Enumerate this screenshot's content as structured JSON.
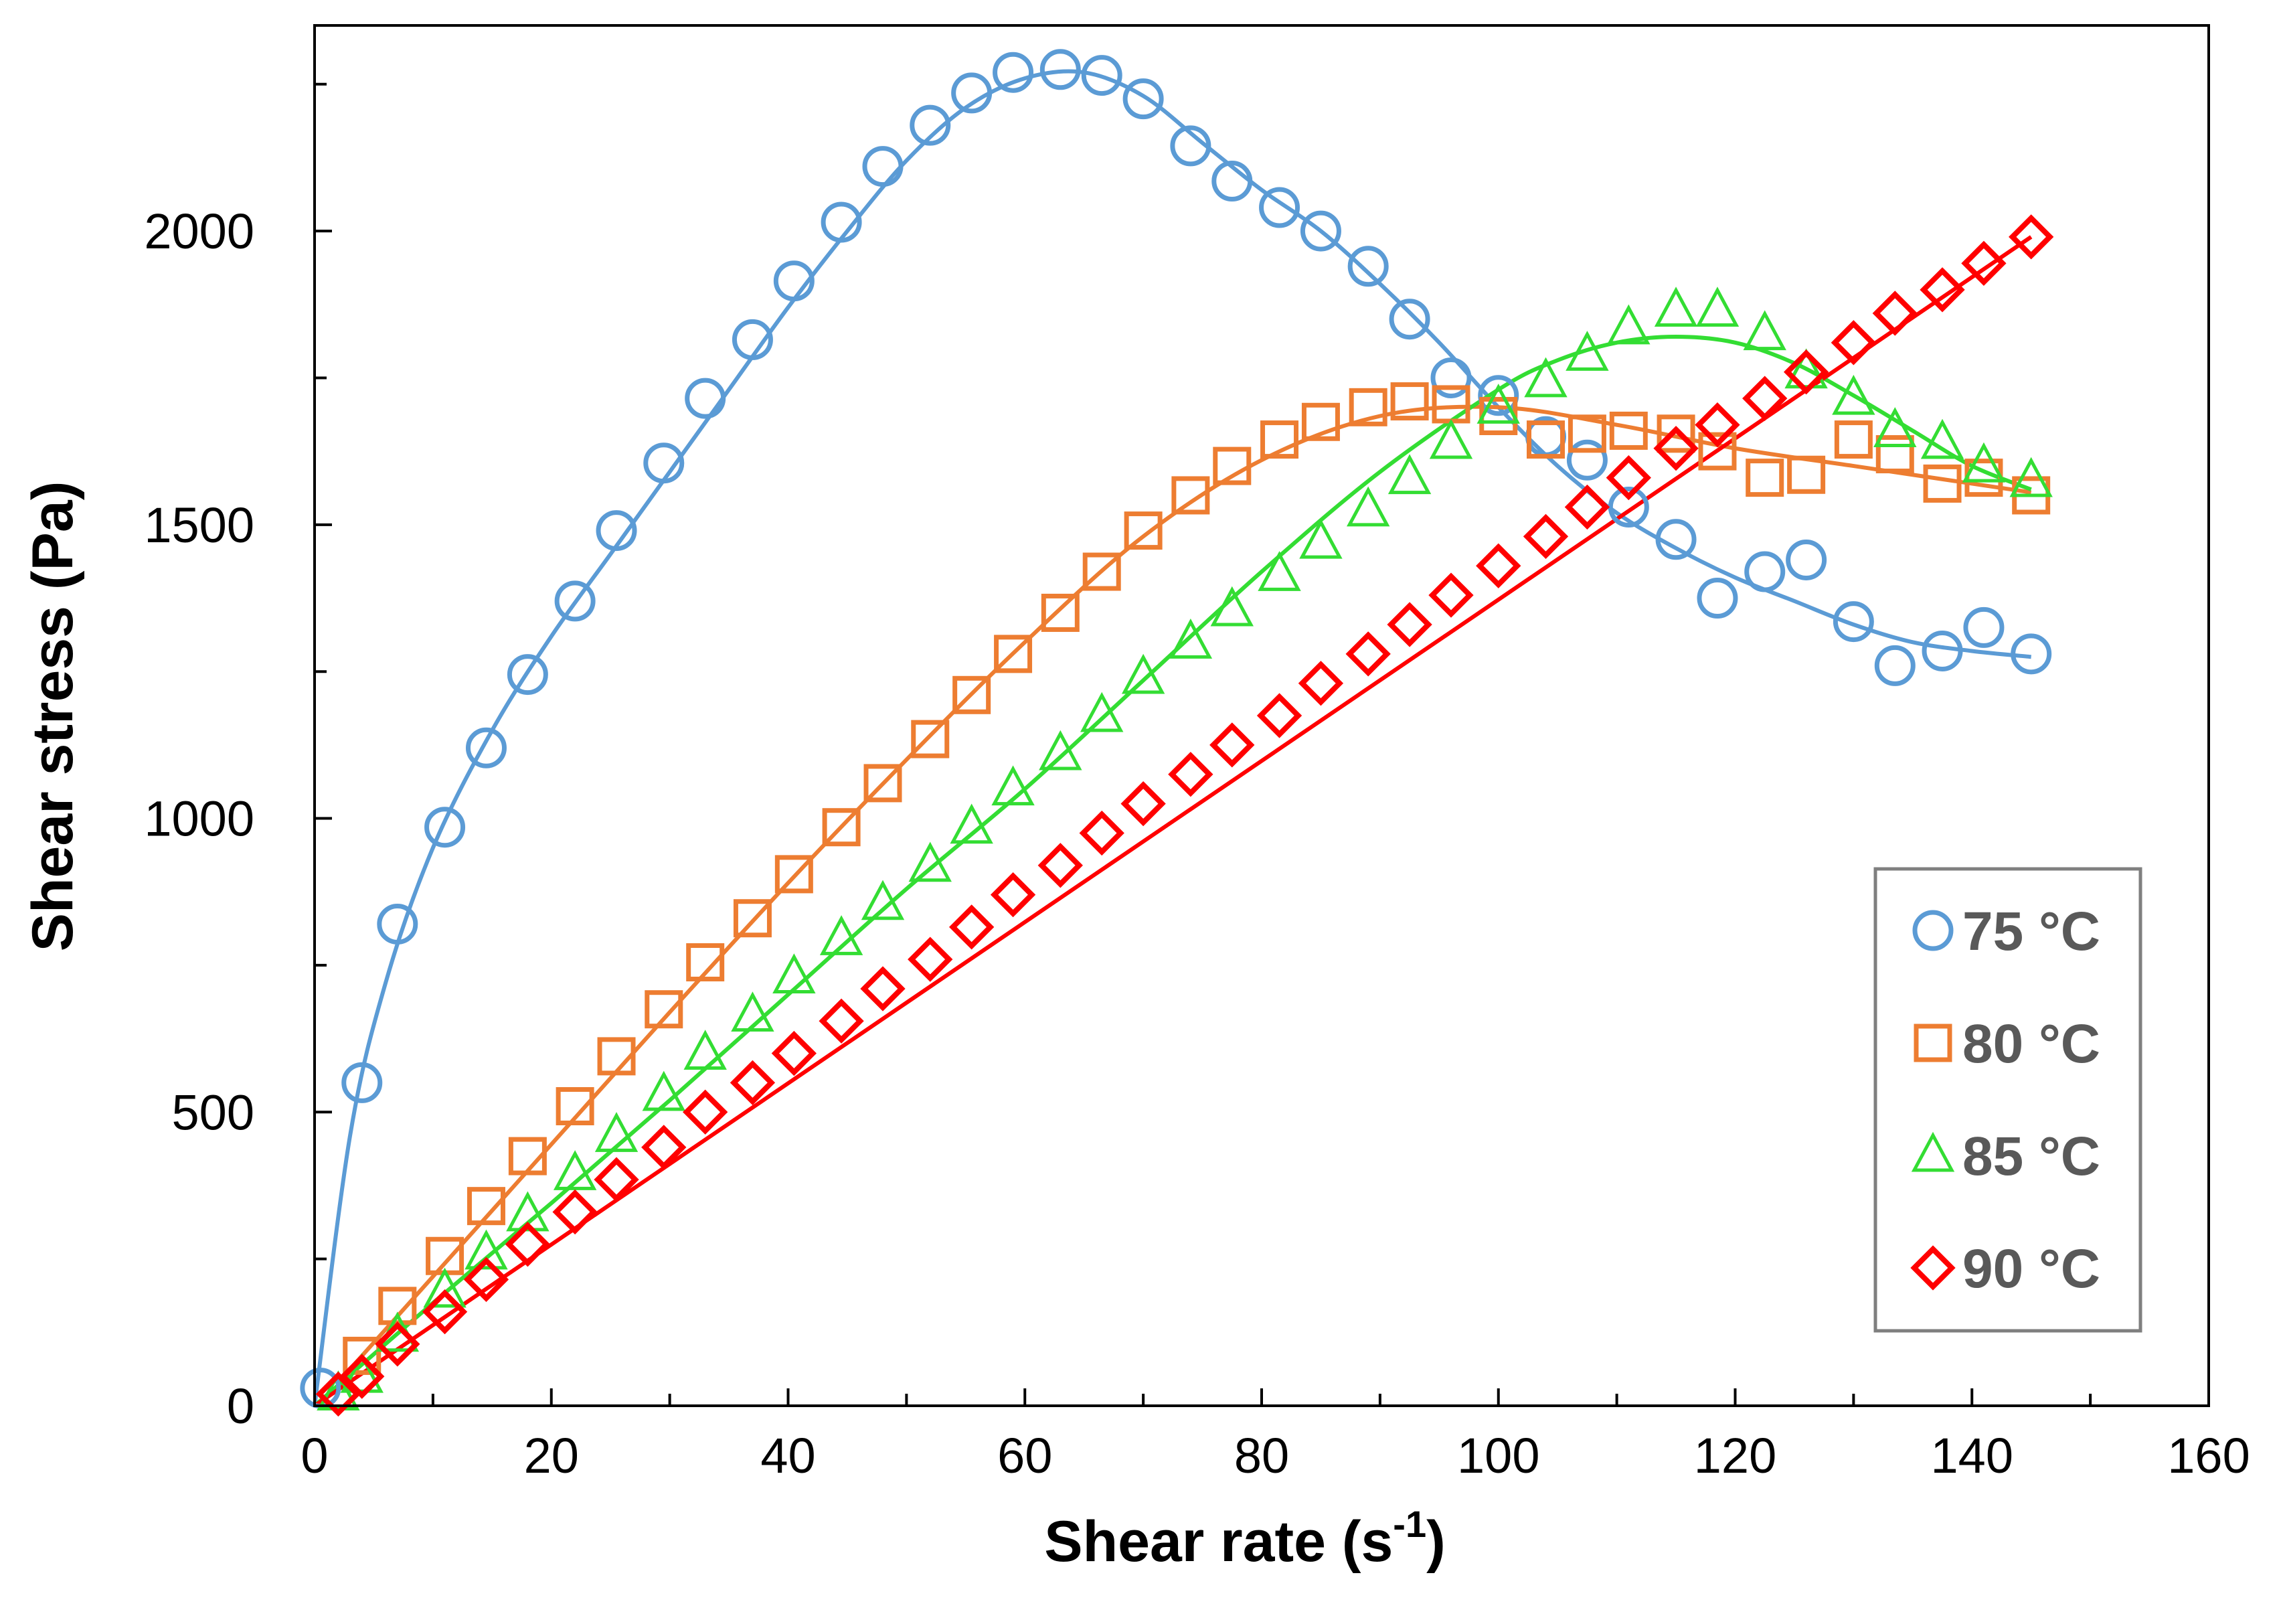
{
  "chart_data": {
    "type": "scatter",
    "xlabel": "Shear rate (s",
    "xlabel_sup": "-1",
    "xlabel_close": ")",
    "ylabel": "Shear stress (Pa)",
    "xlim": [
      0,
      160
    ],
    "ylim": [
      0,
      2350
    ],
    "xticks": [
      0,
      20,
      40,
      60,
      80,
      100,
      120,
      140,
      160
    ],
    "yticks": [
      0,
      500,
      1000,
      1500,
      2000
    ],
    "grid": false,
    "legend_position": "bottom-right",
    "fitted_lines": true,
    "series": [
      {
        "name": "75 °C",
        "marker": "circle",
        "color": "#5B9BD5",
        "x": [
          0.5,
          4,
          7,
          11,
          14.5,
          18,
          22,
          25.5,
          29.5,
          33,
          37,
          40.5,
          44.5,
          48,
          52,
          55.5,
          59,
          63,
          66.5,
          70,
          74,
          77.5,
          81.5,
          85,
          89,
          92.5,
          96,
          100,
          104,
          107.5,
          111,
          115,
          118.5,
          122.5,
          126,
          130,
          133.5,
          137.5,
          141,
          145
        ],
        "y": [
          30,
          550,
          820,
          985,
          1120,
          1245,
          1370,
          1490,
          1605,
          1715,
          1815,
          1915,
          2015,
          2110,
          2180,
          2235,
          2270,
          2275,
          2265,
          2225,
          2145,
          2085,
          2040,
          2000,
          1940,
          1850,
          1750,
          1720,
          1650,
          1610,
          1530,
          1475,
          1375,
          1420,
          1440,
          1335,
          1260,
          1285,
          1325,
          1280
        ],
        "fit_x": [
          0,
          3,
          6,
          10,
          15,
          20,
          25,
          30,
          35,
          40,
          45,
          50,
          55,
          60,
          65,
          70,
          75,
          80,
          85,
          90,
          95,
          100,
          105,
          110,
          115,
          120,
          125,
          130,
          135,
          140,
          145
        ],
        "fit_y": [
          0,
          460,
          720,
          950,
          1150,
          1310,
          1450,
          1590,
          1730,
          1870,
          2000,
          2120,
          2210,
          2260,
          2270,
          2230,
          2150,
          2070,
          2000,
          1910,
          1810,
          1700,
          1600,
          1520,
          1460,
          1410,
          1370,
          1330,
          1300,
          1285,
          1275
        ]
      },
      {
        "name": "80 °C",
        "marker": "square",
        "color": "#ED7D31",
        "x": [
          4,
          7,
          11,
          14.5,
          18,
          22,
          25.5,
          29.5,
          33,
          37,
          40.5,
          44.5,
          48,
          52,
          55.5,
          59,
          63,
          66.5,
          70,
          74,
          77.5,
          81.5,
          85,
          89,
          92.5,
          96,
          100,
          104,
          107.5,
          111,
          115,
          118.5,
          122.5,
          126,
          130,
          133.5,
          137.5,
          141,
          145
        ],
        "y": [
          85,
          170,
          255,
          340,
          425,
          510,
          595,
          675,
          755,
          830,
          905,
          985,
          1060,
          1135,
          1210,
          1280,
          1350,
          1420,
          1490,
          1550,
          1600,
          1645,
          1675,
          1700,
          1710,
          1705,
          1685,
          1645,
          1655,
          1660,
          1655,
          1625,
          1580,
          1585,
          1645,
          1620,
          1570,
          1580,
          1550
        ],
        "fit_x": [
          2,
          10,
          20,
          30,
          40,
          50,
          60,
          70,
          80,
          90,
          100,
          110,
          120,
          130,
          140,
          145
        ],
        "fit_y": [
          40,
          220,
          445,
          670,
          890,
          1100,
          1300,
          1480,
          1610,
          1685,
          1700,
          1670,
          1630,
          1600,
          1570,
          1555
        ]
      },
      {
        "name": "85 °C",
        "marker": "triangle",
        "color": "#33DD33",
        "x": [
          2,
          4,
          7,
          11,
          14.5,
          18,
          22,
          25.5,
          29.5,
          33,
          37,
          40.5,
          44.5,
          48,
          52,
          55.5,
          59,
          63,
          66.5,
          70,
          74,
          77.5,
          81.5,
          85,
          89,
          92.5,
          96,
          100,
          104,
          107.5,
          111,
          115,
          118.5,
          122.5,
          126,
          130,
          133.5,
          137.5,
          141,
          145
        ],
        "y": [
          20,
          50,
          120,
          195,
          260,
          325,
          395,
          460,
          530,
          600,
          665,
          730,
          795,
          855,
          920,
          985,
          1050,
          1110,
          1175,
          1240,
          1300,
          1355,
          1415,
          1470,
          1525,
          1580,
          1640,
          1700,
          1745,
          1790,
          1835,
          1865,
          1865,
          1825,
          1760,
          1715,
          1660,
          1640,
          1600,
          1575
        ],
        "fit_x": [
          0,
          10,
          20,
          30,
          40,
          50,
          60,
          70,
          80,
          90,
          100,
          105,
          110,
          115,
          120,
          125,
          130,
          135,
          140,
          145
        ],
        "fit_y": [
          0,
          175,
          345,
          520,
          700,
          880,
          1050,
          1235,
          1420,
          1590,
          1730,
          1780,
          1810,
          1820,
          1810,
          1775,
          1720,
          1660,
          1600,
          1560
        ]
      },
      {
        "name": "90 °C",
        "marker": "diamond",
        "color": "#FF0000",
        "x": [
          2,
          4,
          7,
          11,
          14.5,
          18,
          22,
          25.5,
          29.5,
          33,
          37,
          40.5,
          44.5,
          48,
          52,
          55.5,
          59,
          63,
          66.5,
          70,
          74,
          77.5,
          81.5,
          85,
          89,
          92.5,
          96,
          100,
          104,
          107.5,
          111,
          115,
          118.5,
          122.5,
          126,
          130,
          133.5,
          137.5,
          141,
          145
        ],
        "y": [
          20,
          50,
          105,
          160,
          215,
          275,
          330,
          385,
          440,
          500,
          550,
          600,
          655,
          710,
          760,
          815,
          870,
          920,
          975,
          1025,
          1075,
          1125,
          1175,
          1230,
          1280,
          1330,
          1380,
          1430,
          1480,
          1530,
          1580,
          1630,
          1670,
          1715,
          1760,
          1810,
          1860,
          1900,
          1945,
          1990
        ],
        "fit_x": [
          0,
          145
        ],
        "fit_y": [
          0,
          1990
        ]
      }
    ]
  }
}
